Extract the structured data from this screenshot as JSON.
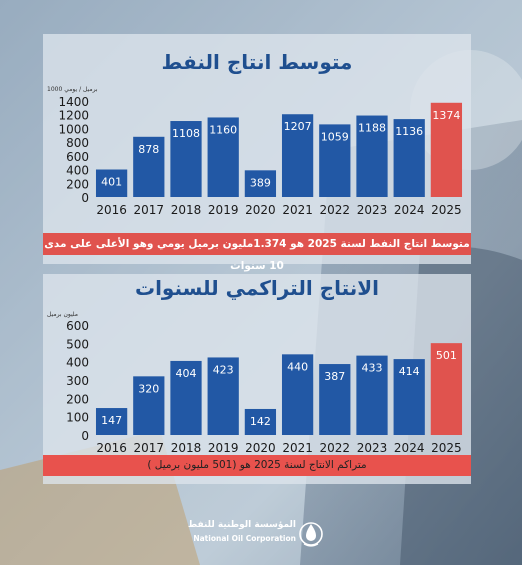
{
  "chart_data": [
    {
      "type": "bar",
      "title": "متوسط انتاج النفط",
      "unit": "1000 برميل / يومي",
      "categories": [
        "2016",
        "2017",
        "2018",
        "2019",
        "2020",
        "2021",
        "2022",
        "2023",
        "2024",
        "2025"
      ],
      "values": [
        401,
        878,
        1108,
        1160,
        389,
        1207,
        1059,
        1188,
        1136,
        1374
      ],
      "ylim": [
        0,
        1400
      ],
      "yticks": [
        0,
        200,
        400,
        600,
        800,
        1000,
        1200,
        1400
      ],
      "bar_color": "#2258a5",
      "highlight_color": "#e0534e",
      "highlight_index": 9,
      "caption": "متوسط انتاج النفط لسنة 2025 هو 1.374مليون برميل يومي وهو الأعلى على مدى 10 سنوات"
    },
    {
      "type": "bar",
      "title": "الانتاج التراكمي للسنوات",
      "unit": "مليون برميل",
      "categories": [
        "2016",
        "2017",
        "2018",
        "2019",
        "2020",
        "2021",
        "2022",
        "2023",
        "2024",
        "2025"
      ],
      "values": [
        147,
        320,
        404,
        423,
        142,
        440,
        387,
        433,
        414,
        501
      ],
      "ylim": [
        0,
        600
      ],
      "yticks": [
        0,
        100,
        200,
        300,
        400,
        500,
        600
      ],
      "bar_color": "#2258a5",
      "highlight_color": "#e0534e",
      "highlight_index": 9,
      "caption": "متراكم الانتاج لسنة 2025 هو (501 مليون برميل )"
    }
  ],
  "footer": {
    "org_ar": "المؤسسة الوطنية للنفط",
    "org_en": "National Oil Corporation"
  }
}
